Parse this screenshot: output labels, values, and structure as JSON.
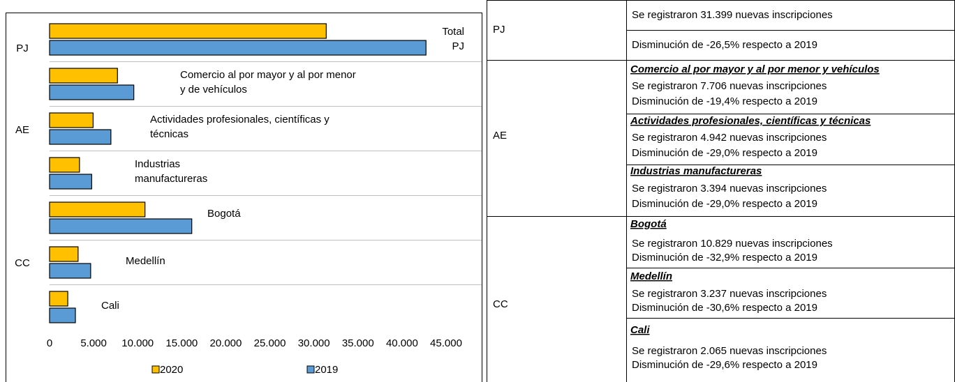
{
  "chart_data": {
    "type": "bar",
    "orientation": "horizontal",
    "groups": [
      {
        "name": "PJ",
        "categories": [
          [
            "Total",
            "PJ"
          ]
        ]
      },
      {
        "name": "AE",
        "categories": [
          [
            "Comercio al por mayor y al por menor",
            "y de vehículos"
          ],
          [
            "Actividades profesionales, científicas y",
            "técnicas"
          ],
          [
            "Industrias",
            "manufactureras"
          ]
        ]
      },
      {
        "name": "CC",
        "categories": [
          [
            "Bogotá"
          ],
          [
            "Medellín"
          ],
          [
            "Cali"
          ]
        ]
      }
    ],
    "series": [
      {
        "name": "2020",
        "color": "#ffc000",
        "values": [
          31399,
          7706,
          4942,
          3394,
          10829,
          3237,
          2065
        ]
      },
      {
        "name": "2019",
        "color": "#5b9bd5",
        "values": [
          42720,
          9561,
          6961,
          4780,
          16139,
          4664,
          2933
        ]
      }
    ],
    "xlim": [
      0,
      45000
    ],
    "xticks": [
      0,
      {
        "value": 5000,
        "label": "5.000"
      },
      {
        "value": 10000,
        "label": "10.000"
      },
      {
        "value": 15000,
        "label": "15.000"
      },
      {
        "value": 20000,
        "label": "20.000"
      },
      {
        "value": 25000,
        "label": "25.000"
      },
      {
        "value": 30000,
        "label": "30.000"
      },
      {
        "value": 35000,
        "label": "35.000"
      },
      {
        "value": 40000,
        "label": "40.000"
      },
      {
        "value": 45000,
        "label": "45.000"
      }
    ],
    "legend": "bottom"
  },
  "table": {
    "groups": [
      {
        "name": "PJ",
        "items": [
          {
            "lines": [
              "Se registraron 31.399 nuevas inscripciones"
            ]
          },
          {
            "lines": [
              "Disminución de -26,5% respecto a 2019"
            ]
          }
        ]
      },
      {
        "name": "AE",
        "items": [
          {
            "heading": "Comercio al por mayor y al por menor y vehículos",
            "lines": [
              "Se registraron 7.706 nuevas inscripciones",
              "Disminución de -19,4% respecto a 2019"
            ]
          },
          {
            "heading": "Actividades profesionales, científicas y técnicas",
            "lines": [
              "Se registraron 4.942 nuevas inscripciones",
              "Disminución de -29,0% respecto a 2019"
            ]
          },
          {
            "heading": "Industrias manufactureras",
            "lines": [
              "Se registraron 3.394 nuevas inscripciones",
              "Disminución de -29,0% respecto a 2019"
            ]
          }
        ]
      },
      {
        "name": "CC",
        "items": [
          {
            "heading": "Bogotá",
            "lines": [
              "Se registraron 10.829 nuevas inscripciones",
              "Disminución de -32,9% respecto a 2019"
            ]
          },
          {
            "heading": "Medellín",
            "lines": [
              "Se registraron 3.237 nuevas inscripciones",
              "Disminución de -30,6% respecto a 2019"
            ]
          },
          {
            "heading": "Cali",
            "lines": [
              "Se registraron 2.065 nuevas inscripciones",
              "Disminución de -29,6% respecto a 2019"
            ]
          }
        ]
      }
    ]
  }
}
